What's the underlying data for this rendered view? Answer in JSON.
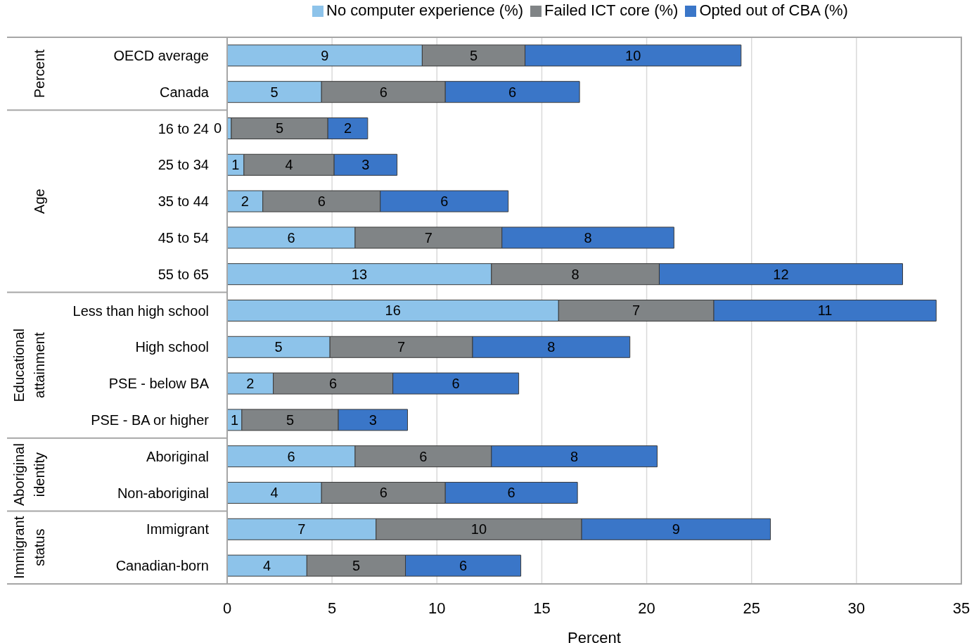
{
  "chart_data": {
    "type": "bar",
    "orientation": "horizontal",
    "stacked": true,
    "xlabel": "Percent",
    "categories": [
      "OECD average",
      "Canada",
      "16 to 24",
      "25 to 34",
      "35 to 44",
      "45 to 54",
      "55 to 65",
      "Less than high school",
      "High school",
      "PSE - below BA",
      "PSE - BA or higher",
      "Aboriginal",
      "Non-aboriginal",
      "Immigrant",
      "Canadian-born"
    ],
    "series": [
      {
        "name": "No computer experience (%)",
        "color": "#8dc3ea",
        "values": [
          9.3,
          4.5,
          0.2,
          0.8,
          1.7,
          6.1,
          12.6,
          15.8,
          4.9,
          2.2,
          0.7,
          6.1,
          4.5,
          7.1,
          3.8
        ],
        "value_labels": [
          "9",
          "5",
          "0",
          "1",
          "2",
          "6",
          "13",
          "16",
          "5",
          "2",
          "1",
          "6",
          "4",
          "7",
          "4"
        ]
      },
      {
        "name": "Failed ICT core (%)",
        "color": "#808486",
        "values": [
          4.9,
          5.9,
          4.6,
          4.3,
          5.6,
          7.0,
          8.0,
          7.4,
          6.8,
          5.7,
          4.6,
          6.5,
          5.9,
          9.8,
          4.7
        ],
        "value_labels": [
          "5",
          "6",
          "5",
          "4",
          "6",
          "7",
          "8",
          "7",
          "7",
          "6",
          "5",
          "6",
          "6",
          "10",
          "5"
        ]
      },
      {
        "name": "Opted out of CBA (%)",
        "color": "#3a76c8",
        "values": [
          10.3,
          6.4,
          1.9,
          3.0,
          6.1,
          8.2,
          11.6,
          10.6,
          7.5,
          6.0,
          3.3,
          7.9,
          6.3,
          9.0,
          5.5
        ],
        "value_labels": [
          "10",
          "6",
          "2",
          "3",
          "6",
          "8",
          "12",
          "11",
          "8",
          "6",
          "3",
          "8",
          "6",
          "9",
          "6"
        ]
      }
    ],
    "xlim": [
      0,
      35
    ],
    "xticks": [
      0,
      5,
      10,
      15,
      20,
      25,
      30,
      35
    ],
    "grid": "x",
    "legend": "top",
    "annotations": [
      "Percent",
      "Age",
      "Educational attainment",
      "Aboriginal identity",
      "Immigrant status"
    ]
  }
}
